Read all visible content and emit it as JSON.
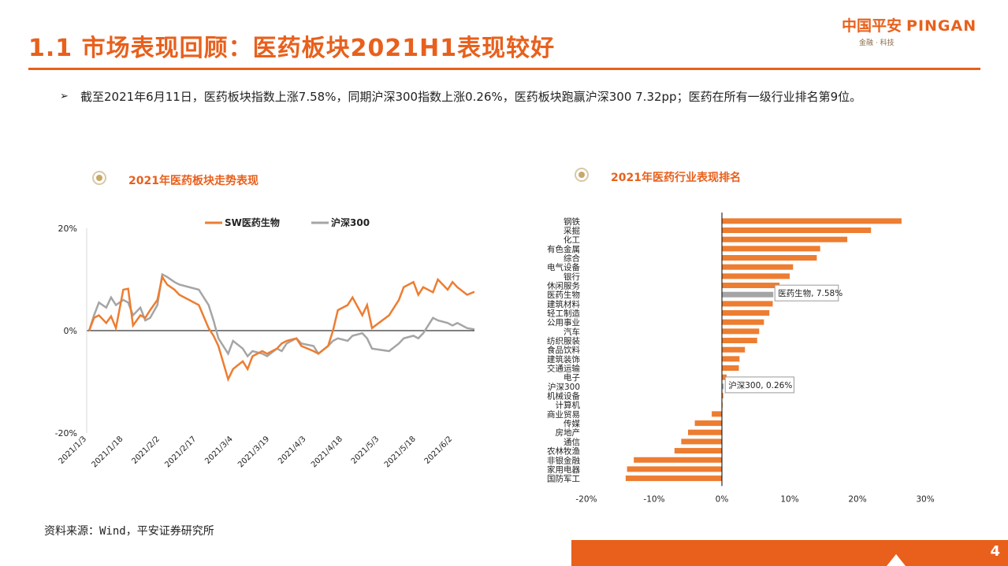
{
  "header": {
    "title": "1.1 市场表现回顾：医药板块2021H1表现较好",
    "logo_cn": "中国平安",
    "logo_en": "PINGAN",
    "logo_sub": "金融 · 科技"
  },
  "bullet": {
    "arrow": "➢",
    "text": "截至2021年6月11日，医药板块指数上涨7.58%，同期沪深300指数上涨0.26%，医药板块跑赢沪深300 7.32pp；医药在所有一级行业排名第9位。"
  },
  "source": "资料来源：Wind，平安证券研究所",
  "page_number": "4",
  "colors": {
    "accent": "#e8601c",
    "sw": "#ed7d31",
    "hs": "#a5a5a5"
  },
  "chart_data": [
    {
      "type": "line",
      "title": "2021年医药板块走势表现",
      "x_ticks": [
        "2021/1/3",
        "2021/1/18",
        "2021/2/2",
        "2021/2/17",
        "2021/3/4",
        "2021/3/19",
        "2021/4/3",
        "2021/4/18",
        "2021/5/3",
        "2021/5/18",
        "2021/6/2"
      ],
      "y_ticks": [
        "20%",
        "0%",
        "-20%"
      ],
      "ylim": [
        -20,
        20
      ],
      "legend_placement": "top",
      "grid": false,
      "x": [
        "2021/1/4",
        "2021/1/6",
        "2021/1/8",
        "2021/1/11",
        "2021/1/13",
        "2021/1/15",
        "2021/1/18",
        "2021/1/20",
        "2021/1/22",
        "2021/1/25",
        "2021/1/27",
        "2021/1/29",
        "2021/2/1",
        "2021/2/3",
        "2021/2/5",
        "2021/2/8",
        "2021/2/10",
        "2021/2/18",
        "2021/2/22",
        "2021/2/24",
        "2021/2/26",
        "2021/3/2",
        "2021/3/4",
        "2021/3/8",
        "2021/3/10",
        "2021/3/12",
        "2021/3/16",
        "2021/3/18",
        "2021/3/22",
        "2021/3/24",
        "2021/3/26",
        "2021/3/30",
        "2021/4/1",
        "2021/4/6",
        "2021/4/8",
        "2021/4/12",
        "2021/4/14",
        "2021/4/16",
        "2021/4/20",
        "2021/4/22",
        "2021/4/26",
        "2021/4/28",
        "2021/4/30",
        "2021/5/7",
        "2021/5/11",
        "2021/5/13",
        "2021/5/17",
        "2021/5/19",
        "2021/5/21",
        "2021/5/25",
        "2021/5/27",
        "2021/5/31",
        "2021/6/2",
        "2021/6/4",
        "2021/6/8",
        "2021/6/11"
      ],
      "series": [
        {
          "name": "SW医药生物",
          "values": [
            0.0,
            2.5,
            3.0,
            1.5,
            2.8,
            0.5,
            8.0,
            8.2,
            1.0,
            3.0,
            2.5,
            4.0,
            6.0,
            10.5,
            9.0,
            8.0,
            7.0,
            5.0,
            0.5,
            -1.0,
            -3.0,
            -9.5,
            -7.5,
            -6.0,
            -7.5,
            -5.0,
            -4.0,
            -4.5,
            -3.5,
            -2.5,
            -2.0,
            -1.5,
            -3.0,
            -4.0,
            -4.5,
            -3.0,
            0.0,
            4.0,
            5.0,
            6.5,
            3.0,
            5.0,
            0.5,
            3.0,
            6.0,
            8.5,
            9.5,
            7.0,
            8.5,
            7.5,
            10.0,
            8.0,
            9.5,
            8.5,
            7.0,
            7.58
          ]
        },
        {
          "name": "沪深300",
          "values": [
            0.0,
            3.0,
            5.5,
            4.5,
            6.5,
            5.0,
            6.0,
            5.5,
            3.0,
            4.5,
            2.0,
            2.5,
            5.0,
            11.0,
            10.5,
            9.5,
            9.0,
            8.0,
            5.0,
            2.0,
            -1.5,
            -4.5,
            -2.0,
            -3.5,
            -5.0,
            -4.0,
            -4.5,
            -5.0,
            -3.5,
            -4.0,
            -2.5,
            -1.5,
            -2.5,
            -3.0,
            -4.5,
            -3.0,
            -2.0,
            -1.5,
            -2.0,
            -1.0,
            -0.5,
            -1.5,
            -3.5,
            -4.0,
            -2.5,
            -1.5,
            -1.0,
            -1.5,
            -0.5,
            2.5,
            2.0,
            1.5,
            1.0,
            1.5,
            0.5,
            0.26
          ]
        }
      ]
    },
    {
      "type": "bar",
      "orientation": "horizontal",
      "title": "2021年医药行业表现排名",
      "categories": [
        "钢铁",
        "采掘",
        "化工",
        "有色金属",
        "综合",
        "电气设备",
        "银行",
        "休闲服务",
        "医药生物",
        "建筑材料",
        "轻工制造",
        "公用事业",
        "汽车",
        "纺织服装",
        "食品饮料",
        "建筑装饰",
        "交通运输",
        "电子",
        "沪深300",
        "机械设备",
        "计算机",
        "商业贸易",
        "传媒",
        "房地产",
        "通信",
        "农林牧渔",
        "非银金融",
        "家用电器",
        "国防军工"
      ],
      "values": [
        26.5,
        22.0,
        18.5,
        14.5,
        14.0,
        10.5,
        10.0,
        8.5,
        7.58,
        7.5,
        7.0,
        6.2,
        5.5,
        5.2,
        3.4,
        2.6,
        2.5,
        0.7,
        0.26,
        0.2,
        0.1,
        -1.5,
        -4.0,
        -5.0,
        -6.0,
        -7.0,
        -13.0,
        -14.0,
        -14.2
      ],
      "highlight": [
        "医药生物",
        "沪深300"
      ],
      "annotations": [
        {
          "category": "医药生物",
          "text": "医药生物, 7.58%"
        },
        {
          "category": "沪深300",
          "text": "沪深300, 0.26%"
        }
      ],
      "x_ticks": [
        -20,
        -10,
        0,
        10,
        20,
        30
      ],
      "x_tick_labels": [
        "-20%",
        "-10%",
        "0%",
        "10%",
        "20%",
        "30%"
      ],
      "xlim": [
        -20,
        30
      ],
      "grid": false
    }
  ]
}
